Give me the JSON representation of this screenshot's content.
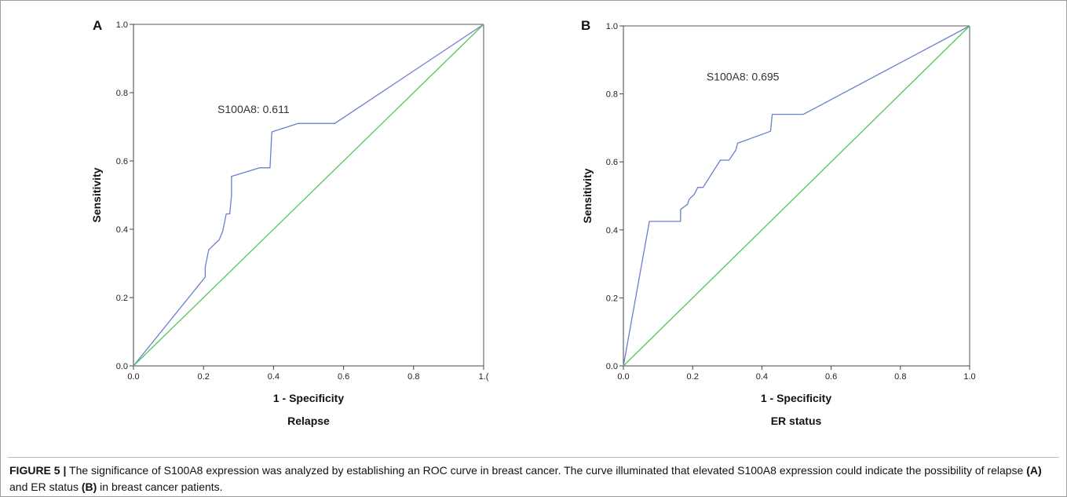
{
  "chart_data": [
    {
      "panel": "A",
      "type": "line",
      "xlabel": "1 - Specificity",
      "subtitle": "Relapse",
      "ylabel": "Sensitivity",
      "xlim": [
        0,
        1
      ],
      "ylim": [
        0,
        1
      ],
      "x_ticks": [
        "0.0",
        "0.2",
        "0.4",
        "0.6",
        "0.8",
        "1.("
      ],
      "y_ticks": [
        "0.0",
        "0.2",
        "0.4",
        "0.6",
        "0.8",
        "1.0"
      ],
      "annotation": "S100A8: 0.611",
      "series": [
        {
          "color": "#6a7fce",
          "x": [
            0,
            0.205,
            0.205,
            0.215,
            0.22,
            0.245,
            0.255,
            0.265,
            0.275,
            0.28,
            0.28,
            0.36,
            0.39,
            0.395,
            0.47,
            0.575,
            1.0
          ],
          "y": [
            0,
            0.26,
            0.29,
            0.34,
            0.345,
            0.37,
            0.395,
            0.445,
            0.445,
            0.5,
            0.555,
            0.58,
            0.58,
            0.685,
            0.71,
            0.71,
            1.0
          ]
        },
        {
          "color": "#4fc85a",
          "x": [
            0,
            1
          ],
          "y": [
            0,
            1
          ]
        }
      ]
    },
    {
      "panel": "B",
      "type": "line",
      "xlabel": "1 - Specificity",
      "subtitle": "ER status",
      "ylabel": "Sensitivity",
      "xlim": [
        0,
        1
      ],
      "ylim": [
        0,
        1
      ],
      "x_ticks": [
        "0.0",
        "0.2",
        "0.4",
        "0.6",
        "0.8",
        "1.0"
      ],
      "y_ticks": [
        "0.0",
        "0.2",
        "0.4",
        "0.6",
        "0.8",
        "1.0"
      ],
      "annotation": "S100A8: 0.695",
      "series": [
        {
          "color": "#6a7fce",
          "x": [
            0,
            0.075,
            0.165,
            0.165,
            0.185,
            0.19,
            0.205,
            0.215,
            0.23,
            0.28,
            0.305,
            0.325,
            0.33,
            0.425,
            0.43,
            0.52,
            1.0
          ],
          "y": [
            0,
            0.425,
            0.425,
            0.46,
            0.475,
            0.49,
            0.505,
            0.525,
            0.525,
            0.605,
            0.605,
            0.635,
            0.655,
            0.69,
            0.74,
            0.74,
            1.0
          ]
        },
        {
          "color": "#4fc85a",
          "x": [
            0,
            1
          ],
          "y": [
            0,
            1
          ]
        }
      ]
    }
  ],
  "caption": {
    "label": "FIGURE 5 |",
    "text_1": " The significance of S100A8 expression was analyzed by establishing an ROC curve in breast cancer. The curve illuminated that elevated S100A8 expression could indicate the possibility of relapse ",
    "ref_a": "(A)",
    "text_2": " and ER status ",
    "ref_b": "(B)",
    "text_3": " in breast cancer patients."
  }
}
